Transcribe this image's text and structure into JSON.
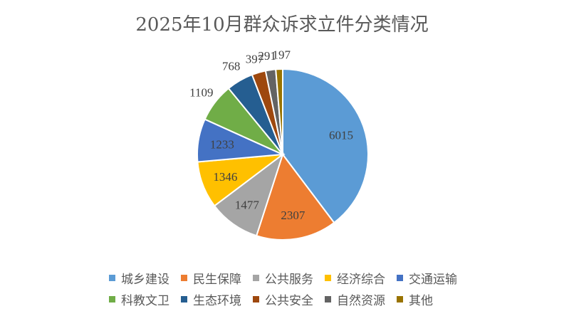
{
  "chart_data": {
    "type": "pie",
    "title": "2025年10月群众诉求立件分类情况",
    "categories": [
      "城乡建设",
      "民生保障",
      "公共服务",
      "经济综合",
      "交通运输",
      "科教文卫",
      "生态环境",
      "公共安全",
      "自然资源",
      "其他"
    ],
    "values": [
      6015,
      2307,
      1477,
      1346,
      1233,
      1109,
      768,
      397,
      291,
      197
    ],
    "colors": [
      "#5B9BD5",
      "#ED7D31",
      "#A5A5A5",
      "#FFC000",
      "#4472C4",
      "#70AD47",
      "#255E91",
      "#9E480E",
      "#636363",
      "#997300"
    ],
    "legend_position": "bottom",
    "data_labels": true
  }
}
